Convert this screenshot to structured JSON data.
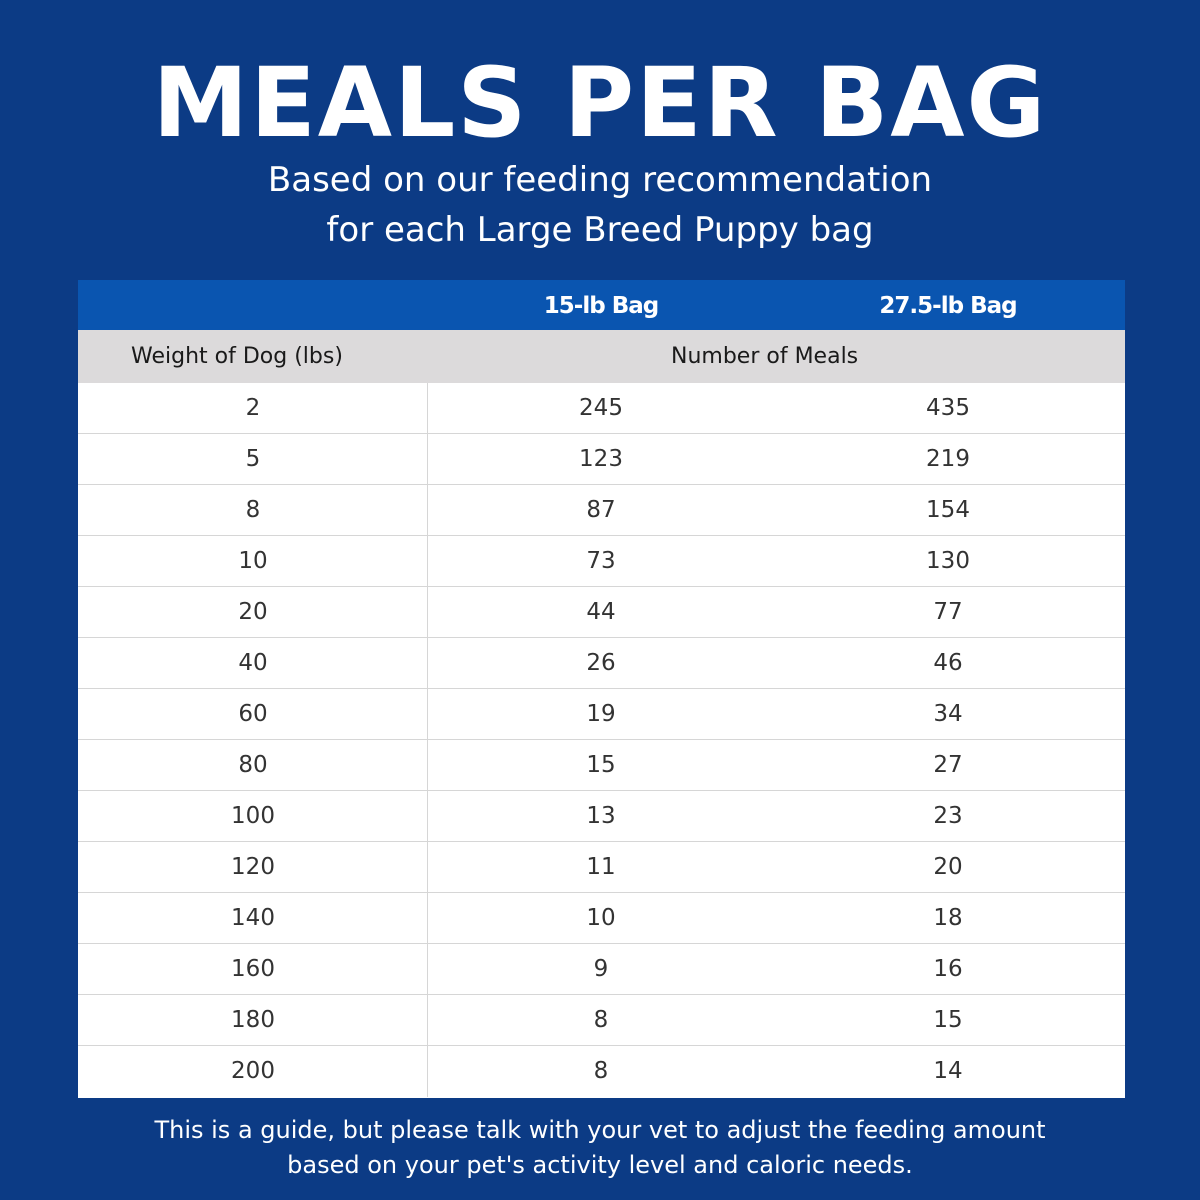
{
  "title": "MEALS PER BAG",
  "subtitle_line1": "Based on our feeding recommendation",
  "subtitle_line2": "for each Large Breed Puppy bag",
  "colors": {
    "background": "#0c3b85",
    "header_bar": "#0a55b0",
    "subheader": "#dcdadb"
  },
  "table": {
    "bag_headers": [
      "15-lb Bag",
      "27.5-lb Bag"
    ],
    "weight_header": "Weight of Dog (lbs)",
    "meals_header": "Number of Meals",
    "rows": [
      [
        "2",
        "245",
        "435"
      ],
      [
        "5",
        "123",
        "219"
      ],
      [
        "8",
        "87",
        "154"
      ],
      [
        "10",
        "73",
        "130"
      ],
      [
        "20",
        "44",
        "77"
      ],
      [
        "40",
        "26",
        "46"
      ],
      [
        "60",
        "19",
        "34"
      ],
      [
        "80",
        "15",
        "27"
      ],
      [
        "100",
        "13",
        "23"
      ],
      [
        "120",
        "11",
        "20"
      ],
      [
        "140",
        "10",
        "18"
      ],
      [
        "160",
        "9",
        "16"
      ],
      [
        "180",
        "8",
        "15"
      ],
      [
        "200",
        "8",
        "14"
      ]
    ]
  },
  "footnote_line1": "This is a guide, but please talk with your vet to adjust the feeding amount",
  "footnote_line2": "based on your pet's activity level and caloric needs."
}
